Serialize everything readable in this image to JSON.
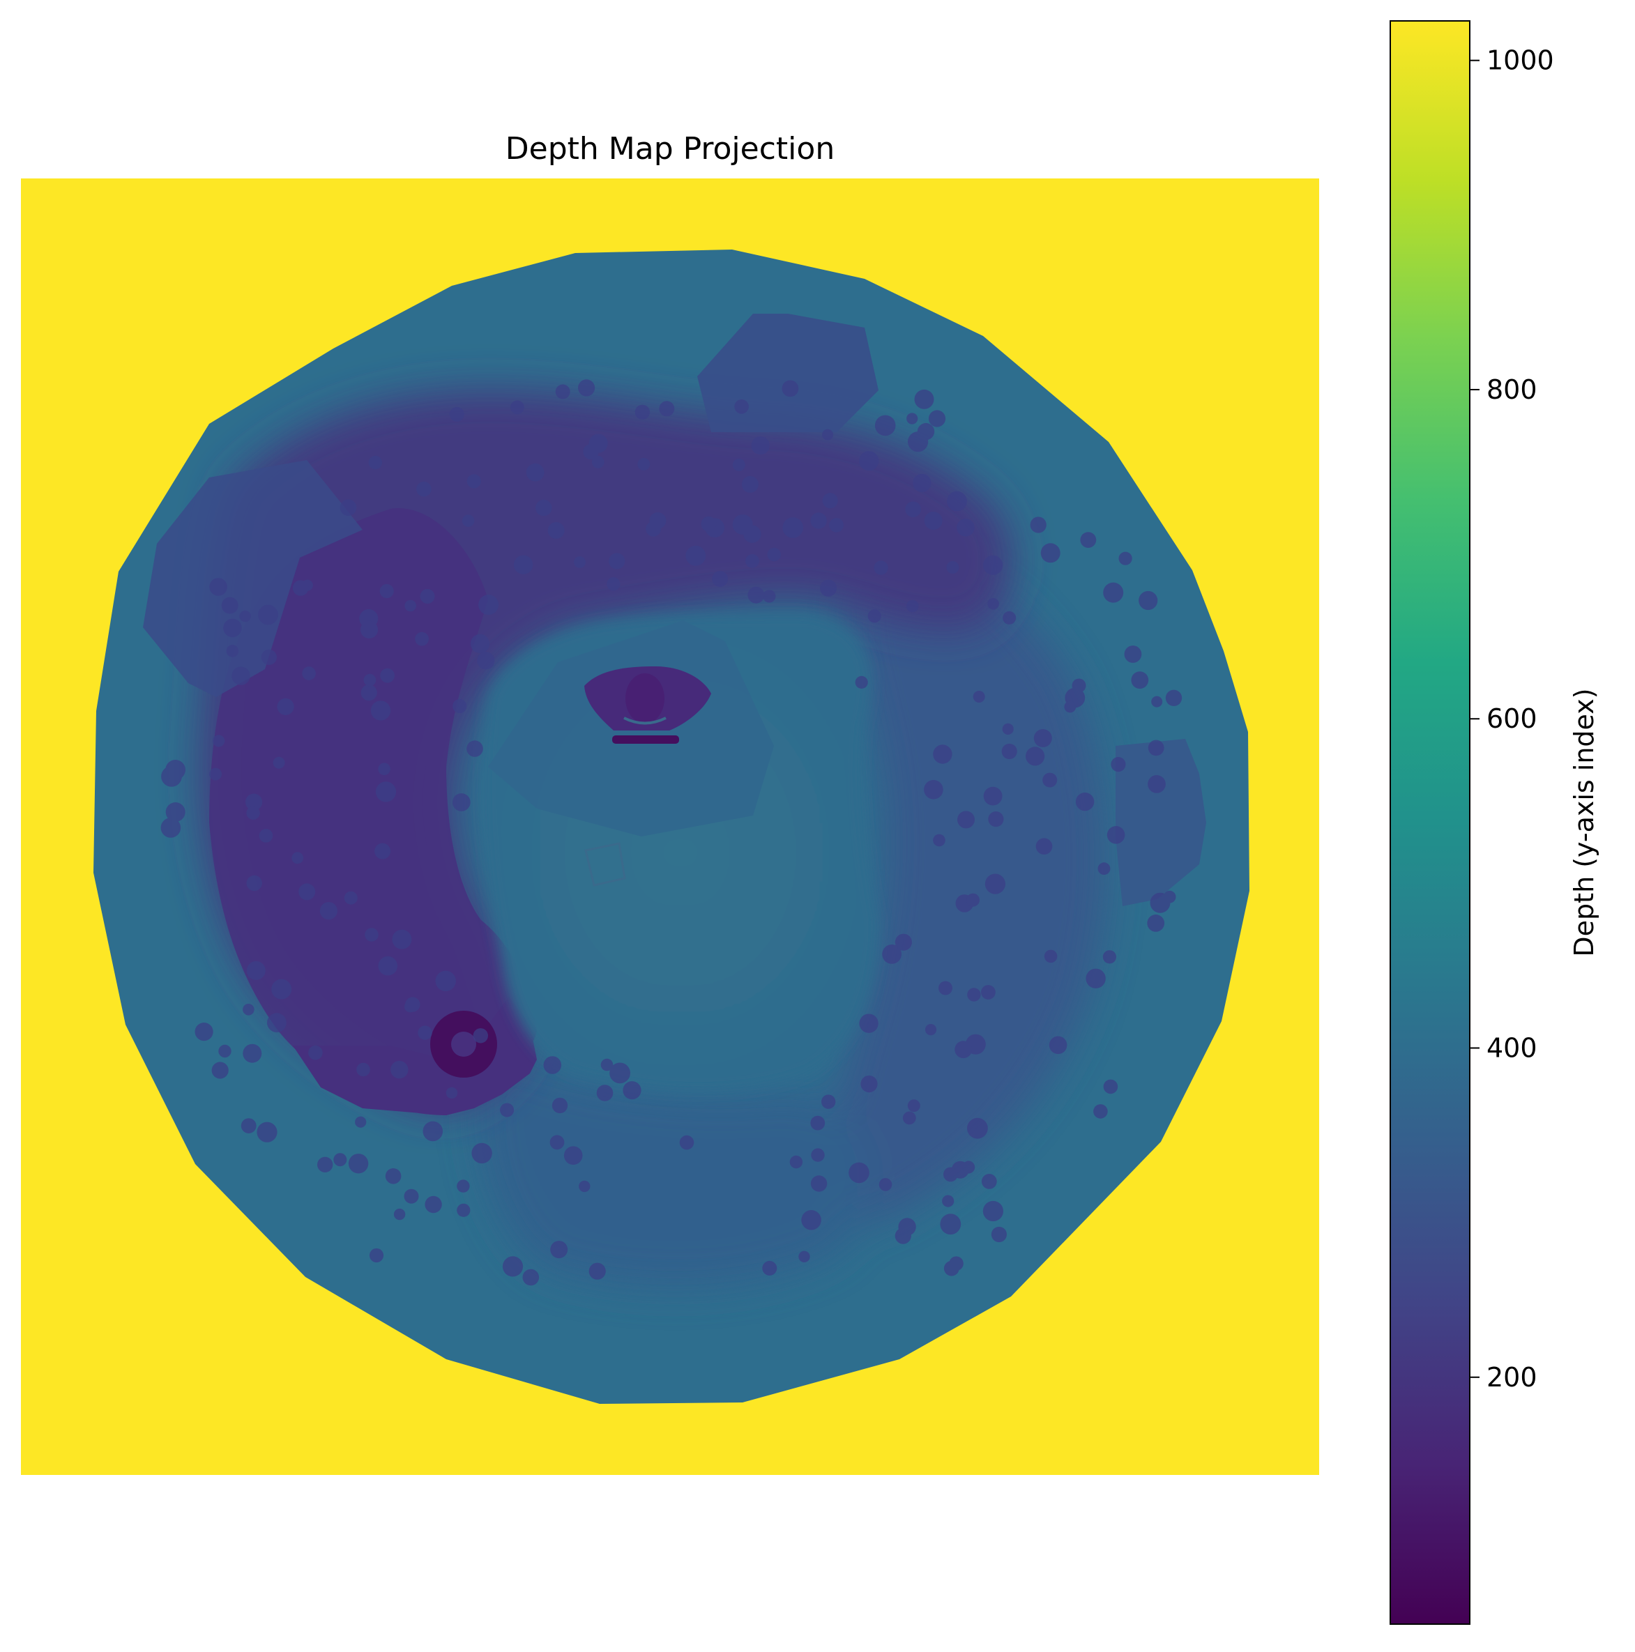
{
  "chart_data": {
    "type": "heatmap",
    "title": "Depth Map Projection",
    "colormap": "viridis",
    "colorbar": {
      "label": "Depth (y-axis index)",
      "range": [
        50,
        1024
      ],
      "ticks": [
        200,
        400,
        600,
        800,
        1000
      ]
    },
    "background_value": 1024,
    "outer_ring_value": 395,
    "inner_floor_value": 380,
    "curved_ridge_value": 215,
    "right_region_value": 320,
    "bottom_region_value": 345,
    "center_object_value": 170,
    "ring_object_value": 80,
    "axes_visible": false
  },
  "colors": {
    "background": "#fde725",
    "outer_ring": "#2e6e8e",
    "inner_floor": "#30708e",
    "ridge": "#43397f",
    "ridge_dark": "#472f7d",
    "right_region": "#38598c",
    "bottom_region": "#31658e",
    "ring_object": "#440f5e"
  }
}
